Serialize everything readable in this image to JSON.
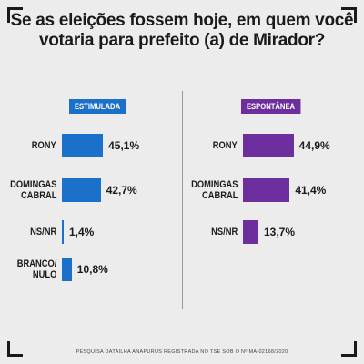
{
  "title": {
    "line1": "Se as eleições fossem hoje, em quem você",
    "line2": "votaria para prefeito (a) de Mirador?"
  },
  "footer": "PESQUISA DATAILHA ANAPURUS REGISTRADA NO TSE SOB O Nº MA-02168/2020",
  "chart_data": [
    {
      "type": "bar",
      "orientation": "horizontal",
      "title": "ESTIMULADA",
      "color": "#1b70c9",
      "categories": [
        "RONY",
        "DOMINGAS CABRAL",
        "NS/NR",
        "BRANCO/ NULO"
      ],
      "values": [
        45.1,
        42.7,
        1.4,
        10.8
      ],
      "value_labels": [
        "45,1%",
        "42,7%",
        "1,4%",
        "10,8%"
      ],
      "xlim": [
        0,
        100
      ],
      "grid": false
    },
    {
      "type": "bar",
      "orientation": "horizontal",
      "title": "ESPONTÂNEA",
      "color": "#6e2f9e",
      "categories": [
        "RONY",
        "DOMINGAS CABRAL",
        "NS/NR"
      ],
      "values": [
        44.9,
        41.4,
        13.7
      ],
      "value_labels": [
        "44,9%",
        "41,4%",
        "13,7%"
      ],
      "xlim": [
        0,
        100
      ],
      "grid": false
    }
  ]
}
